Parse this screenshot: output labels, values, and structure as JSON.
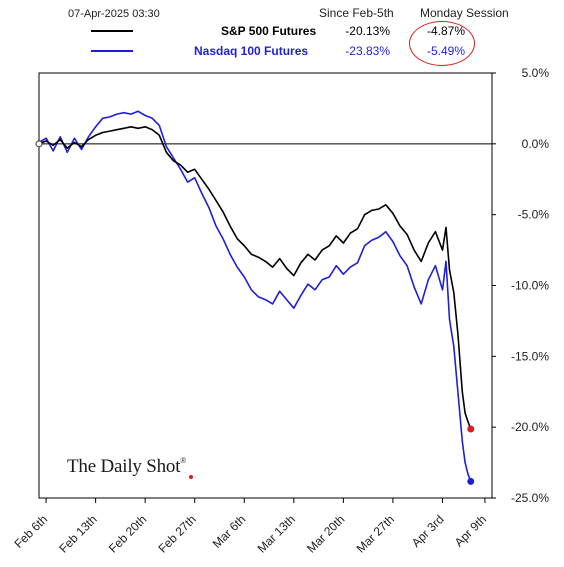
{
  "header": {
    "timestamp": "07-Apr-2025 03:30",
    "col1": "Since Feb-5th",
    "col2": "Monday Session"
  },
  "legend": [
    {
      "name": "S&P 500 Futures",
      "since": "-20.13%",
      "session": "-4.87%",
      "color": "#000000"
    },
    {
      "name": "Nasdaq 100 Futures",
      "since": "-23.83%",
      "session": "-5.49%",
      "color": "#1f1fd6"
    }
  ],
  "brand": "The Daily Shot",
  "brand_mark": "®",
  "colors": {
    "sp500": "#000000",
    "nasdaq": "#1f1fd6",
    "highlight": "#d92020"
  },
  "chart_data": {
    "type": "line",
    "y_unit": "%",
    "ylim": [
      -25,
      5
    ],
    "yticks": [
      "5.0%",
      "0.0%",
      "-5.0%",
      "-10.0%",
      "-15.0%",
      "-20.0%",
      "-25.0%"
    ],
    "ytick_values": [
      5,
      0,
      -5,
      -10,
      -15,
      -20,
      -25
    ],
    "xtick_labels": [
      "Feb 6th",
      "Feb 13th",
      "Feb 20th",
      "Feb 27th",
      "Mar 6th",
      "Mar 13th",
      "Mar 20th",
      "Mar 27th",
      "Apr 3rd",
      "Apr 9th"
    ],
    "xtick_days": [
      1,
      8,
      15,
      22,
      29,
      36,
      43,
      50,
      57,
      63
    ],
    "xlim_days": [
      0,
      64
    ],
    "zero_line": true,
    "series": [
      {
        "name": "S&P 500 Futures",
        "color": "#000000",
        "points": [
          [
            0,
            0.0
          ],
          [
            1,
            0.2
          ],
          [
            2,
            -0.1
          ],
          [
            3,
            0.3
          ],
          [
            4,
            -0.3
          ],
          [
            5,
            0.1
          ],
          [
            6,
            -0.2
          ],
          [
            7,
            0.3
          ],
          [
            8,
            0.6
          ],
          [
            9,
            0.8
          ],
          [
            10,
            0.9
          ],
          [
            11,
            1.0
          ],
          [
            12,
            1.1
          ],
          [
            13,
            1.2
          ],
          [
            14,
            1.1
          ],
          [
            15,
            1.2
          ],
          [
            16,
            1.0
          ],
          [
            17,
            0.6
          ],
          [
            18,
            -0.6
          ],
          [
            19,
            -1.2
          ],
          [
            20,
            -1.5
          ],
          [
            21,
            -2.0
          ],
          [
            22,
            -1.8
          ],
          [
            23,
            -2.5
          ],
          [
            24,
            -3.2
          ],
          [
            25,
            -4.0
          ],
          [
            26,
            -4.8
          ],
          [
            27,
            -5.8
          ],
          [
            28,
            -6.7
          ],
          [
            29,
            -7.2
          ],
          [
            30,
            -7.8
          ],
          [
            31,
            -8.0
          ],
          [
            32,
            -8.3
          ],
          [
            33,
            -8.7
          ],
          [
            34,
            -8.1
          ],
          [
            35,
            -8.8
          ],
          [
            36,
            -9.3
          ],
          [
            37,
            -8.4
          ],
          [
            38,
            -7.8
          ],
          [
            39,
            -8.2
          ],
          [
            40,
            -7.5
          ],
          [
            41,
            -7.2
          ],
          [
            42,
            -6.5
          ],
          [
            43,
            -7.0
          ],
          [
            44,
            -6.3
          ],
          [
            45,
            -6.0
          ],
          [
            46,
            -5.0
          ],
          [
            47,
            -4.7
          ],
          [
            48,
            -4.6
          ],
          [
            49,
            -4.3
          ],
          [
            50,
            -4.9
          ],
          [
            51,
            -5.8
          ],
          [
            52,
            -6.4
          ],
          [
            53,
            -7.5
          ],
          [
            54,
            -8.3
          ],
          [
            55,
            -7.0
          ],
          [
            56,
            -6.2
          ],
          [
            57,
            -7.5
          ],
          [
            57.5,
            -5.9
          ],
          [
            58,
            -8.9
          ],
          [
            58.6,
            -10.5
          ],
          [
            59.2,
            -13.5
          ],
          [
            59.8,
            -17.5
          ],
          [
            60.2,
            -19.0
          ],
          [
            60.6,
            -19.6
          ],
          [
            61,
            -20.13
          ]
        ]
      },
      {
        "name": "Nasdaq 100 Futures",
        "color": "#1f1fd6",
        "points": [
          [
            0,
            0.1
          ],
          [
            1,
            0.4
          ],
          [
            2,
            -0.5
          ],
          [
            3,
            0.5
          ],
          [
            4,
            -0.6
          ],
          [
            5,
            0.4
          ],
          [
            6,
            -0.4
          ],
          [
            7,
            0.5
          ],
          [
            8,
            1.2
          ],
          [
            9,
            1.8
          ],
          [
            10,
            1.9
          ],
          [
            11,
            2.1
          ],
          [
            12,
            2.2
          ],
          [
            13,
            2.1
          ],
          [
            14,
            2.3
          ],
          [
            15,
            2.0
          ],
          [
            16,
            1.8
          ],
          [
            17,
            1.3
          ],
          [
            18,
            -0.2
          ],
          [
            19,
            -1.0
          ],
          [
            20,
            -1.8
          ],
          [
            21,
            -2.7
          ],
          [
            22,
            -2.4
          ],
          [
            23,
            -3.5
          ],
          [
            24,
            -4.5
          ],
          [
            25,
            -5.8
          ],
          [
            26,
            -6.7
          ],
          [
            27,
            -7.8
          ],
          [
            28,
            -8.7
          ],
          [
            29,
            -9.4
          ],
          [
            30,
            -10.3
          ],
          [
            31,
            -10.8
          ],
          [
            32,
            -11.0
          ],
          [
            33,
            -11.3
          ],
          [
            34,
            -10.4
          ],
          [
            35,
            -11.0
          ],
          [
            36,
            -11.6
          ],
          [
            37,
            -10.7
          ],
          [
            38,
            -9.9
          ],
          [
            39,
            -10.3
          ],
          [
            40,
            -9.6
          ],
          [
            41,
            -9.4
          ],
          [
            42,
            -8.6
          ],
          [
            43,
            -9.2
          ],
          [
            44,
            -8.7
          ],
          [
            45,
            -8.4
          ],
          [
            46,
            -7.2
          ],
          [
            47,
            -6.8
          ],
          [
            48,
            -6.6
          ],
          [
            49,
            -6.2
          ],
          [
            50,
            -6.9
          ],
          [
            51,
            -7.9
          ],
          [
            52,
            -8.6
          ],
          [
            53,
            -10.1
          ],
          [
            54,
            -11.3
          ],
          [
            55,
            -9.6
          ],
          [
            56,
            -8.6
          ],
          [
            57,
            -10.3
          ],
          [
            57.5,
            -8.3
          ],
          [
            58,
            -12.4
          ],
          [
            58.6,
            -14.3
          ],
          [
            59.2,
            -17.6
          ],
          [
            59.8,
            -21.0
          ],
          [
            60.2,
            -22.5
          ],
          [
            60.6,
            -23.3
          ],
          [
            61,
            -23.83
          ]
        ]
      }
    ],
    "end_markers": [
      {
        "series": "S&P 500 Futures",
        "day": 61,
        "value": -20.13,
        "color": "#d92020"
      },
      {
        "series": "Nasdaq 100 Futures",
        "day": 61,
        "value": -23.83,
        "color": "#1f1fd6"
      }
    ]
  }
}
